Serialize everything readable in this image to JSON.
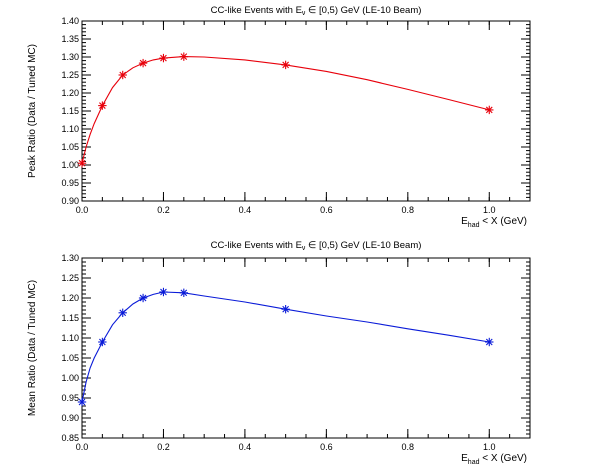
{
  "chart_data": [
    {
      "type": "scatter",
      "title_main": "CC-like Events with E",
      "title_sub": "ν",
      "title_rest": " ∈ [0,5) GeV (LE-10 Beam)",
      "xlabel_main": "E",
      "xlabel_sub": "had",
      "xlabel_rest": " < X (GeV)",
      "ylabel": "Peak Ratio (Data / Tuned MC)",
      "xlim": [
        0,
        1.1
      ],
      "ylim": [
        0.9,
        1.4
      ],
      "xticks": [
        "0.0",
        "0.2",
        "0.4",
        "0.6",
        "0.8",
        "1.0"
      ],
      "yticks": [
        "0.90",
        "0.95",
        "1.00",
        "1.05",
        "1.10",
        "1.15",
        "1.20",
        "1.25",
        "1.30",
        "1.35",
        "1.40"
      ],
      "color": "#e8000b",
      "series": [
        {
          "x": [
            0.0,
            0.05,
            0.1,
            0.15,
            0.2,
            0.25,
            0.5,
            1.0
          ],
          "y": [
            1.005,
            1.165,
            1.25,
            1.283,
            1.297,
            1.301,
            1.278,
            1.153
          ]
        }
      ],
      "curve": {
        "x": [
          0.0,
          0.01,
          0.02,
          0.03,
          0.05,
          0.075,
          0.1,
          0.125,
          0.15,
          0.175,
          0.2,
          0.25,
          0.3,
          0.4,
          0.5,
          0.6,
          0.7,
          0.8,
          0.9,
          1.0
        ],
        "y": [
          1.005,
          1.05,
          1.085,
          1.115,
          1.165,
          1.215,
          1.25,
          1.27,
          1.283,
          1.292,
          1.297,
          1.301,
          1.3,
          1.292,
          1.278,
          1.26,
          1.237,
          1.21,
          1.182,
          1.153
        ]
      }
    },
    {
      "type": "scatter",
      "title_main": "CC-like Events with E",
      "title_sub": "ν",
      "title_rest": " ∈ [0,5) GeV (LE-10 Beam)",
      "xlabel_main": "E",
      "xlabel_sub": "had",
      "xlabel_rest": " < X (GeV)",
      "ylabel": "Mean Ratio (Data / Tuned MC)",
      "xlim": [
        0,
        1.1
      ],
      "ylim": [
        0.85,
        1.3
      ],
      "xticks": [
        "0.0",
        "0.2",
        "0.4",
        "0.6",
        "0.8",
        "1.0"
      ],
      "yticks": [
        "0.85",
        "0.90",
        "0.95",
        "1.00",
        "1.05",
        "1.10",
        "1.15",
        "1.20",
        "1.25",
        "1.30"
      ],
      "color": "#0a1bd8",
      "series": [
        {
          "x": [
            0.0,
            0.05,
            0.1,
            0.15,
            0.2,
            0.25,
            0.5,
            1.0
          ],
          "y": [
            0.94,
            1.09,
            1.163,
            1.2,
            1.215,
            1.213,
            1.172,
            1.09
          ]
        }
      ],
      "curve": {
        "x": [
          0.0,
          0.01,
          0.02,
          0.03,
          0.05,
          0.075,
          0.1,
          0.125,
          0.15,
          0.175,
          0.2,
          0.25,
          0.3,
          0.4,
          0.5,
          0.6,
          0.7,
          0.8,
          0.9,
          1.0
        ],
        "y": [
          0.94,
          0.99,
          1.025,
          1.05,
          1.09,
          1.133,
          1.163,
          1.185,
          1.2,
          1.209,
          1.215,
          1.213,
          1.205,
          1.19,
          1.172,
          1.155,
          1.14,
          1.123,
          1.107,
          1.09
        ]
      }
    }
  ]
}
